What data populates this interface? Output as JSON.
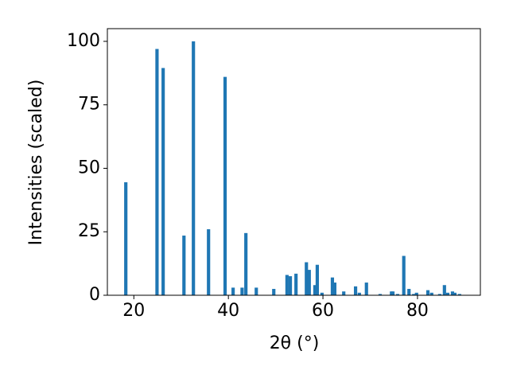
{
  "chart_data": {
    "type": "bar",
    "x_label": "2θ (°)",
    "y_label": "Intensities (scaled)",
    "x": [
      18.3,
      24.9,
      26.2,
      30.6,
      32.6,
      35.8,
      39.3,
      41.0,
      42.9,
      43.7,
      45.9,
      49.6,
      52.4,
      53.1,
      54.3,
      56.5,
      57.1,
      58.3,
      58.8,
      59.8,
      62.0,
      62.5,
      64.4,
      66.9,
      67.7,
      69.2,
      72.1,
      74.5,
      74.8,
      75.8,
      77.1,
      78.2,
      79.2,
      79.8,
      82.2,
      83.0,
      84.7,
      85.7,
      86.4,
      87.4,
      87.9,
      88.9
    ],
    "values": [
      44.5,
      97,
      89.5,
      23.5,
      100,
      26,
      86,
      3,
      3,
      24.5,
      3,
      2.5,
      8,
      7.5,
      8.5,
      13,
      10,
      4,
      12,
      1,
      7,
      5,
      1.5,
      3.5,
      1,
      5,
      0.5,
      1.5,
      1.5,
      0.5,
      15.5,
      2.5,
      0.5,
      1,
      2,
      1,
      0.5,
      4,
      1,
      1.5,
      1,
      0.5
    ],
    "color": "#1f77b4",
    "xlim": [
      14.4,
      93.3
    ],
    "xticks": [
      20,
      40,
      60,
      80
    ],
    "ylim": [
      0,
      105
    ],
    "yticks": [
      0,
      25,
      50,
      75,
      100
    ]
  }
}
